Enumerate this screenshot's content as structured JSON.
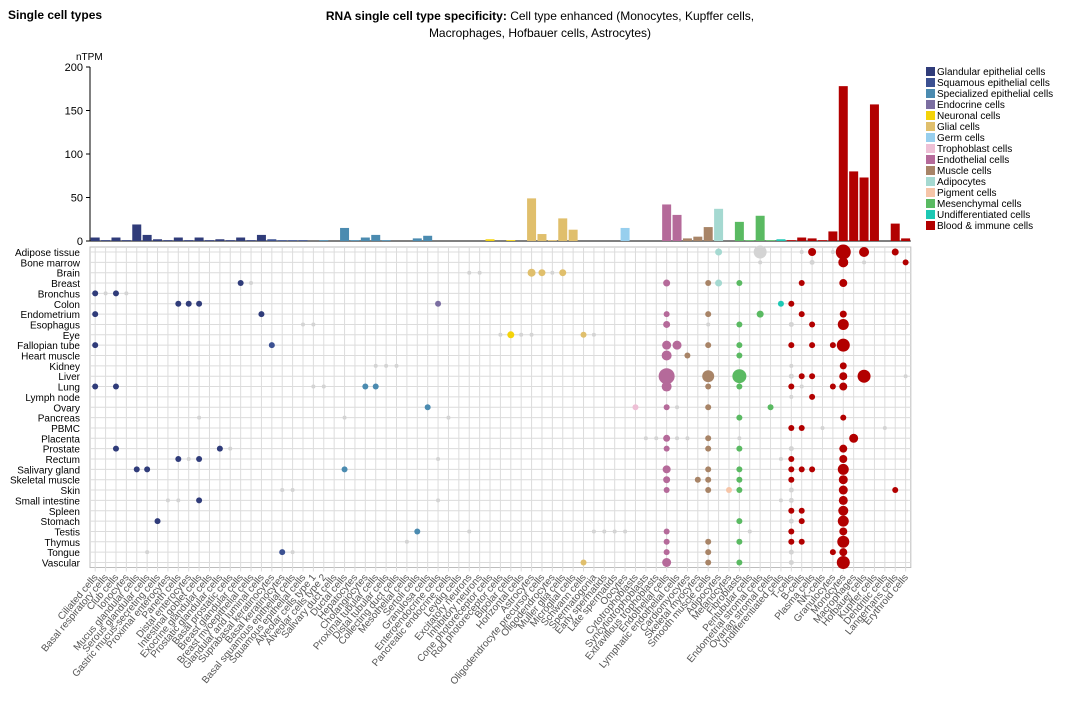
{
  "panel_title": "Single cell types",
  "chart_title_bold": "RNA single cell type specificity:",
  "chart_title_rest": "Cell type enhanced (Monocytes, Kupffer cells, Macrophages, Hofbauer cells, Astrocytes)",
  "chart_data": {
    "type": "bar",
    "ylabel": "nTPM",
    "ylim": [
      0,
      200
    ],
    "yticks": [
      0,
      50,
      100,
      150,
      200
    ],
    "groups": [
      {
        "name": "Glandular epithelial cells",
        "color": "#303c7a"
      },
      {
        "name": "Squamous epithelial cells",
        "color": "#3c5192"
      },
      {
        "name": "Specialized epithelial cells",
        "color": "#4b8bb0"
      },
      {
        "name": "Endocrine cells",
        "color": "#7b6ea1"
      },
      {
        "name": "Neuronal cells",
        "color": "#f4d30a"
      },
      {
        "name": "Glial cells",
        "color": "#e0bf6c"
      },
      {
        "name": "Germ cells",
        "color": "#97cfee"
      },
      {
        "name": "Trophoblast cells",
        "color": "#eec0d6"
      },
      {
        "name": "Endothelial cells",
        "color": "#b56a9a"
      },
      {
        "name": "Muscle cells",
        "color": "#a88467"
      },
      {
        "name": "Adipocytes",
        "color": "#a5d9d1"
      },
      {
        "name": "Pigment cells",
        "color": "#f6c5a8"
      },
      {
        "name": "Mesenchymal cells",
        "color": "#5aba62"
      },
      {
        "name": "Undifferentiated cells",
        "color": "#1dc8b4"
      },
      {
        "name": "Blood & immune cells",
        "color": "#b20000"
      }
    ],
    "categories": [
      "Ciliated cells",
      "Basal respiratory cells",
      "Club cells",
      "Ionocytes",
      "Mucus glandular cells",
      "Serous glandular cells",
      "Gastric mucus-secreting cells",
      "Proximal enterocytes",
      "Paneth cells",
      "Distal enterocytes",
      "Intestinal goblet cells",
      "Exocrine glandular cells",
      "Prostatic glandular cells",
      "Basal prostatic cells",
      "Breast glandular cells",
      "Breast myoepithelial cells",
      "Glandular and luminal cells",
      "Suprabasal keratinocytes",
      "Basal keratinocytes",
      "Basal squamous epithelial cells",
      "Squamous epithelial cells",
      "Alveolar cells type 1",
      "Alveolar cells type 2",
      "Salivary duct cells",
      "Ductal cells",
      "Hepatocytes",
      "Cholangiocytes",
      "Proximal tubular cells",
      "Distal tubular cells",
      "Collecting duct cells",
      "Mesothelial cells",
      "Sertoli cells",
      "Granulosa cells",
      "Enteroendocrine cells",
      "Pancreatic endocrine cells",
      "Leydig cells",
      "Excitatory neurons",
      "Inhibitory neurons",
      "Cone photoreceptor cells",
      "Rod photoreceptor cells",
      "Bipolar cells",
      "Horizontal cells",
      "Astrocytes",
      "Oligodendrocyte precursor cells",
      "Oligodendrocytes",
      "Muller glia cells",
      "Microglial cells",
      "Schwann cells",
      "Spermatogonia",
      "Early spermatids",
      "Late spermatids",
      "Oocytes",
      "Cytotrophoblasts",
      "Syncytiotrophoblasts",
      "Extravillous trophoblasts",
      "Endothelial cells",
      "Lymphatic endothelial cells",
      "Cardiomyocytes",
      "Skeletal myocytes",
      "Smooth muscle cells",
      "Adipocytes",
      "Melanocytes",
      "Fibroblasts",
      "Peritubular cells",
      "Endometrial stromal cells",
      "Ovarian stromal cells",
      "Undifferentiated cells",
      "T-cells",
      "B-cells",
      "Plasma cells",
      "NK-cells",
      "Granulocytes",
      "Monocytes",
      "Macrophages",
      "Hofbauer cells",
      "Kupffer cells",
      "Dendritic cells",
      "Langerhans cells",
      "Erythroid cells"
    ],
    "category_groups": [
      0,
      0,
      0,
      0,
      0,
      0,
      0,
      0,
      0,
      0,
      0,
      0,
      0,
      0,
      0,
      0,
      0,
      1,
      1,
      1,
      1,
      2,
      2,
      2,
      2,
      2,
      2,
      2,
      2,
      2,
      2,
      2,
      2,
      3,
      3,
      3,
      4,
      4,
      4,
      4,
      4,
      4,
      5,
      5,
      5,
      5,
      5,
      5,
      6,
      6,
      6,
      6,
      7,
      7,
      7,
      8,
      8,
      9,
      9,
      9,
      10,
      11,
      12,
      12,
      12,
      12,
      13,
      14,
      14,
      14,
      14,
      14,
      14,
      14,
      14,
      14,
      14,
      14,
      14
    ],
    "values": [
      4,
      1,
      4,
      1,
      19,
      7,
      2,
      1,
      4,
      1,
      4,
      1,
      2,
      1,
      4,
      1,
      7,
      2,
      1,
      1,
      1,
      0,
      1,
      0,
      15,
      1,
      4,
      7,
      1,
      0,
      0,
      3,
      6,
      0,
      0,
      0,
      0,
      0,
      2,
      0,
      1,
      0,
      49,
      8,
      1,
      26,
      13,
      0,
      0,
      0,
      0,
      15,
      0,
      0,
      0,
      42,
      30,
      3,
      5,
      16,
      37,
      0,
      22,
      1,
      29,
      1,
      2,
      1,
      4,
      3,
      1,
      11,
      178,
      80,
      73,
      157,
      0,
      20,
      3
    ],
    "tissues": [
      "Adipose tissue",
      "Bone marrow",
      "Brain",
      "Breast",
      "Bronchus",
      "Colon",
      "Endometrium",
      "Esophagus",
      "Eye",
      "Fallopian tube",
      "Heart muscle",
      "Kidney",
      "Liver",
      "Lung",
      "Lymph node",
      "Ovary",
      "Pancreas",
      "PBMC",
      "Placenta",
      "Prostate",
      "Rectum",
      "Salivary gland",
      "Skeletal muscle",
      "Skin",
      "Small intestine",
      "Spleen",
      "Stomach",
      "Testis",
      "Thymus",
      "Tongue",
      "Vascular"
    ],
    "dots": [
      [
        0,
        60,
        3.5,
        1
      ],
      [
        0,
        64,
        6.5,
        0
      ],
      [
        0,
        68,
        2,
        0
      ],
      [
        0,
        69,
        4,
        1
      ],
      [
        0,
        71,
        2,
        0
      ],
      [
        0,
        72,
        7.5,
        1
      ],
      [
        0,
        74,
        5,
        1
      ],
      [
        0,
        77,
        3.5,
        1
      ],
      [
        1,
        64,
        2,
        0
      ],
      [
        1,
        69,
        2.5,
        0
      ],
      [
        1,
        72,
        5,
        1
      ],
      [
        1,
        74,
        2,
        0
      ],
      [
        1,
        78,
        3,
        1
      ],
      [
        2,
        36,
        2,
        0
      ],
      [
        2,
        37,
        2,
        0
      ],
      [
        2,
        42,
        4,
        1
      ],
      [
        2,
        43,
        3.5,
        1
      ],
      [
        2,
        44,
        2,
        0
      ],
      [
        2,
        45,
        3.5,
        1
      ],
      [
        3,
        14,
        3,
        1
      ],
      [
        3,
        15,
        2,
        0
      ],
      [
        3,
        55,
        3.5,
        1
      ],
      [
        3,
        59,
        3,
        1
      ],
      [
        3,
        60,
        3.5,
        1
      ],
      [
        3,
        62,
        3,
        1
      ],
      [
        3,
        68,
        3,
        1
      ],
      [
        3,
        72,
        4,
        1
      ],
      [
        4,
        0,
        3,
        1
      ],
      [
        4,
        1,
        2,
        0
      ],
      [
        4,
        2,
        3,
        1
      ],
      [
        4,
        3,
        2,
        0
      ],
      [
        5,
        8,
        3,
        1
      ],
      [
        5,
        9,
        3,
        1
      ],
      [
        5,
        10,
        3,
        1
      ],
      [
        5,
        33,
        3,
        1
      ],
      [
        5,
        66,
        3,
        1
      ],
      [
        5,
        67,
        3,
        1
      ],
      [
        6,
        0,
        3,
        1
      ],
      [
        6,
        16,
        3,
        1
      ],
      [
        6,
        55,
        3,
        1
      ],
      [
        6,
        59,
        3,
        1
      ],
      [
        6,
        64,
        3.5,
        1
      ],
      [
        6,
        68,
        3,
        1
      ],
      [
        6,
        72,
        3.5,
        1
      ],
      [
        7,
        20,
        2,
        0
      ],
      [
        7,
        21,
        2,
        0
      ],
      [
        7,
        55,
        3.5,
        1
      ],
      [
        7,
        59,
        2,
        0
      ],
      [
        7,
        62,
        3,
        1
      ],
      [
        7,
        67,
        2.5,
        0
      ],
      [
        7,
        69,
        3,
        1
      ],
      [
        7,
        72,
        5.5,
        1
      ],
      [
        8,
        39,
        2,
        0
      ],
      [
        8,
        40,
        3.5,
        1
      ],
      [
        8,
        41,
        2,
        0
      ],
      [
        8,
        42,
        2,
        0
      ],
      [
        8,
        47,
        3,
        1
      ],
      [
        8,
        48,
        2,
        0
      ],
      [
        9,
        0,
        3,
        1
      ],
      [
        9,
        17,
        3,
        1
      ],
      [
        9,
        55,
        4.5,
        1
      ],
      [
        9,
        56,
        4.5,
        1
      ],
      [
        9,
        59,
        3,
        1
      ],
      [
        9,
        62,
        3,
        1
      ],
      [
        9,
        67,
        3,
        1
      ],
      [
        9,
        69,
        3,
        1
      ],
      [
        9,
        71,
        3,
        1
      ],
      [
        9,
        72,
        6.5,
        1
      ],
      [
        10,
        55,
        5,
        1
      ],
      [
        10,
        57,
        3,
        1
      ],
      [
        10,
        62,
        3,
        1
      ],
      [
        11,
        27,
        2,
        0
      ],
      [
        11,
        28,
        2,
        0
      ],
      [
        11,
        29,
        2,
        0
      ],
      [
        11,
        67,
        2,
        0
      ],
      [
        11,
        72,
        3.5,
        1
      ],
      [
        12,
        55,
        8,
        1
      ],
      [
        12,
        59,
        6,
        1
      ],
      [
        12,
        62,
        7,
        1
      ],
      [
        12,
        67,
        2.5,
        0
      ],
      [
        12,
        68,
        3,
        1
      ],
      [
        12,
        69,
        3,
        1
      ],
      [
        12,
        72,
        4,
        1
      ],
      [
        12,
        74,
        6.5,
        1
      ],
      [
        12,
        78,
        2,
        0
      ],
      [
        13,
        0,
        3,
        1
      ],
      [
        13,
        2,
        3,
        1
      ],
      [
        13,
        21,
        2,
        0
      ],
      [
        13,
        22,
        2,
        0
      ],
      [
        13,
        26,
        3,
        1
      ],
      [
        13,
        27,
        3,
        1
      ],
      [
        13,
        55,
        5,
        1
      ],
      [
        13,
        59,
        3,
        1
      ],
      [
        13,
        62,
        3,
        1
      ],
      [
        13,
        67,
        3,
        1
      ],
      [
        13,
        68,
        2,
        0
      ],
      [
        13,
        71,
        3,
        1
      ],
      [
        13,
        72,
        4,
        1
      ],
      [
        14,
        67,
        2,
        0
      ],
      [
        14,
        69,
        3,
        1
      ],
      [
        15,
        32,
        3,
        1
      ],
      [
        15,
        52,
        3,
        1
      ],
      [
        15,
        55,
        3,
        1
      ],
      [
        15,
        56,
        2,
        0
      ],
      [
        15,
        59,
        3,
        1
      ],
      [
        15,
        65,
        3,
        1
      ],
      [
        16,
        10,
        2,
        0
      ],
      [
        16,
        24,
        2,
        0
      ],
      [
        16,
        34,
        2,
        0
      ],
      [
        16,
        62,
        3,
        1
      ],
      [
        16,
        72,
        3,
        1
      ],
      [
        17,
        67,
        3,
        1
      ],
      [
        17,
        68,
        3,
        1
      ],
      [
        17,
        70,
        2,
        0
      ],
      [
        17,
        76,
        2,
        0
      ],
      [
        18,
        53,
        2,
        0
      ],
      [
        18,
        54,
        2,
        0
      ],
      [
        18,
        55,
        3.5,
        1
      ],
      [
        18,
        56,
        2,
        0
      ],
      [
        18,
        57,
        2,
        0
      ],
      [
        18,
        59,
        3,
        1
      ],
      [
        18,
        62,
        2,
        0
      ],
      [
        18,
        73,
        4.5,
        1
      ],
      [
        19,
        2,
        3,
        1
      ],
      [
        19,
        12,
        3,
        1
      ],
      [
        19,
        13,
        2,
        0
      ],
      [
        19,
        55,
        3,
        1
      ],
      [
        19,
        59,
        3,
        1
      ],
      [
        19,
        62,
        3,
        1
      ],
      [
        19,
        67,
        2.5,
        0
      ],
      [
        19,
        72,
        4,
        1
      ],
      [
        20,
        8,
        3,
        1
      ],
      [
        20,
        9,
        2,
        0
      ],
      [
        20,
        10,
        3,
        1
      ],
      [
        20,
        33,
        2,
        0
      ],
      [
        20,
        66,
        2,
        0
      ],
      [
        20,
        67,
        3,
        1
      ],
      [
        20,
        72,
        4,
        1
      ],
      [
        21,
        4,
        3,
        1
      ],
      [
        21,
        5,
        3,
        1
      ],
      [
        21,
        24,
        3,
        1
      ],
      [
        21,
        55,
        4,
        1
      ],
      [
        21,
        59,
        3,
        1
      ],
      [
        21,
        62,
        3,
        1
      ],
      [
        21,
        67,
        3,
        1
      ],
      [
        21,
        68,
        3,
        1
      ],
      [
        21,
        69,
        3,
        1
      ],
      [
        21,
        72,
        5.5,
        1
      ],
      [
        22,
        55,
        3.5,
        1
      ],
      [
        22,
        58,
        3,
        1
      ],
      [
        22,
        59,
        3,
        1
      ],
      [
        22,
        62,
        3,
        1
      ],
      [
        22,
        67,
        3,
        1
      ],
      [
        22,
        72,
        4.5,
        1
      ],
      [
        23,
        18,
        2,
        0
      ],
      [
        23,
        19,
        2,
        0
      ],
      [
        23,
        55,
        3,
        1
      ],
      [
        23,
        59,
        3,
        1
      ],
      [
        23,
        61,
        3,
        1
      ],
      [
        23,
        62,
        3,
        1
      ],
      [
        23,
        67,
        2.5,
        0
      ],
      [
        23,
        72,
        4.5,
        1
      ],
      [
        23,
        77,
        3,
        1
      ],
      [
        24,
        7,
        2,
        0
      ],
      [
        24,
        8,
        2,
        0
      ],
      [
        24,
        10,
        3,
        1
      ],
      [
        24,
        33,
        2,
        0
      ],
      [
        24,
        66,
        2,
        0
      ],
      [
        24,
        67,
        2.5,
        0
      ],
      [
        24,
        72,
        4.5,
        1
      ],
      [
        25,
        67,
        3,
        1
      ],
      [
        25,
        68,
        3,
        1
      ],
      [
        25,
        72,
        5,
        1
      ],
      [
        26,
        6,
        3,
        1
      ],
      [
        26,
        62,
        3,
        1
      ],
      [
        26,
        67,
        2.5,
        0
      ],
      [
        26,
        68,
        3,
        1
      ],
      [
        26,
        72,
        5.5,
        1
      ],
      [
        27,
        31,
        3,
        1
      ],
      [
        27,
        36,
        2,
        0
      ],
      [
        27,
        48,
        2,
        0
      ],
      [
        27,
        49,
        2,
        0
      ],
      [
        27,
        50,
        2,
        0
      ],
      [
        27,
        51,
        2,
        0
      ],
      [
        27,
        55,
        3,
        1
      ],
      [
        27,
        63,
        2,
        0
      ],
      [
        27,
        67,
        3,
        1
      ],
      [
        27,
        72,
        4,
        1
      ],
      [
        28,
        30,
        2,
        0
      ],
      [
        28,
        55,
        3,
        1
      ],
      [
        28,
        59,
        3,
        1
      ],
      [
        28,
        62,
        3,
        1
      ],
      [
        28,
        67,
        3,
        1
      ],
      [
        28,
        68,
        3,
        1
      ],
      [
        28,
        72,
        6,
        1
      ],
      [
        29,
        5,
        2,
        0
      ],
      [
        29,
        18,
        3,
        1
      ],
      [
        29,
        19,
        2,
        0
      ],
      [
        29,
        55,
        3,
        1
      ],
      [
        29,
        59,
        3,
        1
      ],
      [
        29,
        67,
        2.5,
        0
      ],
      [
        29,
        71,
        3,
        1
      ],
      [
        29,
        72,
        4,
        1
      ],
      [
        30,
        47,
        3,
        1
      ],
      [
        30,
        55,
        4.5,
        1
      ],
      [
        30,
        59,
        3,
        1
      ],
      [
        30,
        62,
        3,
        1
      ],
      [
        30,
        67,
        2.5,
        0
      ],
      [
        30,
        72,
        6.5,
        1
      ]
    ]
  }
}
